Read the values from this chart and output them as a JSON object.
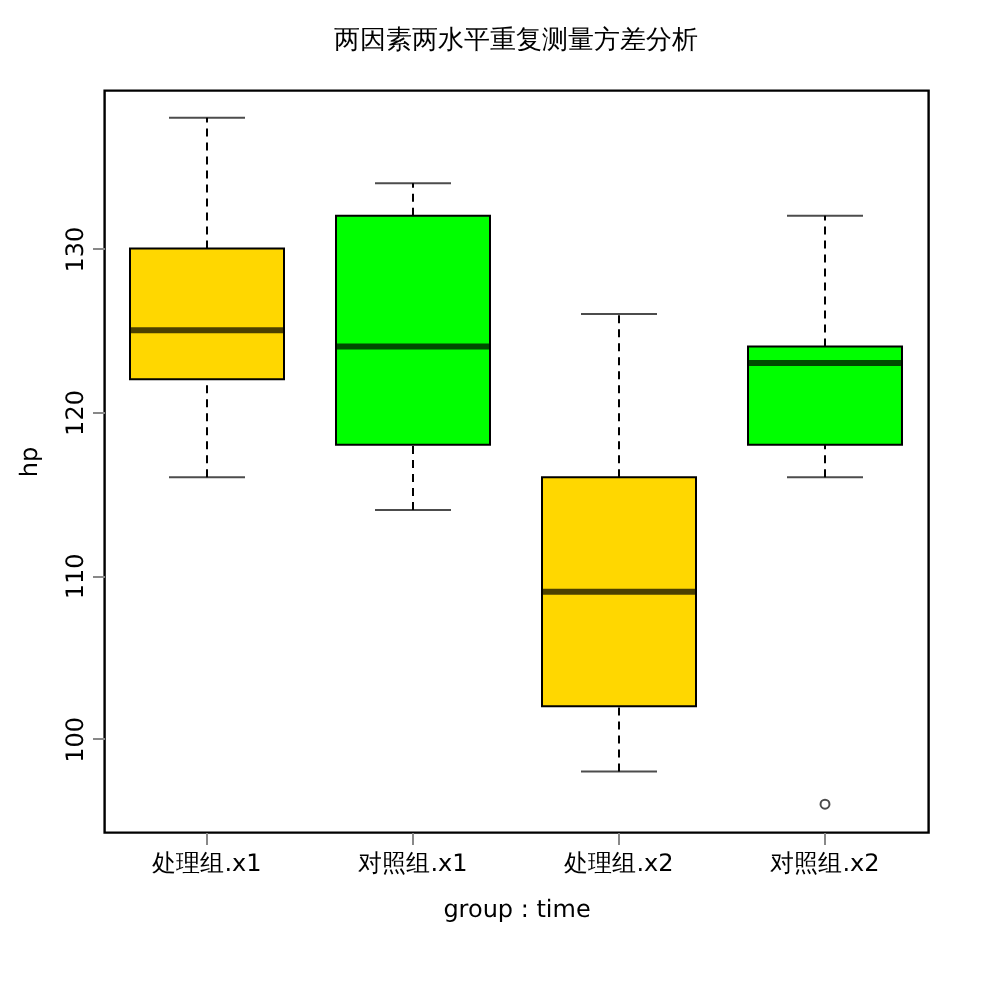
{
  "chart_data": {
    "type": "box",
    "title": "两因素两水平重复测量方差分析",
    "xlabel": "group : time",
    "ylabel": "hp",
    "categories": [
      "处理组.x1",
      "对照组.x1",
      "处理组.x2",
      "对照组.x2"
    ],
    "colors": [
      "#ffd700",
      "#00ff00",
      "#ffd700",
      "#00ff00"
    ],
    "boxes": [
      {
        "low": 116,
        "q1": 122,
        "median": 125,
        "q3": 130,
        "high": 138
      },
      {
        "low": 114,
        "q1": 118,
        "median": 124,
        "q3": 132,
        "high": 134
      },
      {
        "low": 98,
        "q1": 102,
        "median": 109,
        "q3": 116,
        "high": 126
      },
      {
        "low": 116,
        "q1": 118,
        "median": 123,
        "q3": 124,
        "high": 132,
        "outliers": [
          96
        ]
      }
    ],
    "ylim": [
      94.3,
      139.7
    ],
    "yticks": [
      100,
      110,
      120,
      130
    ]
  }
}
